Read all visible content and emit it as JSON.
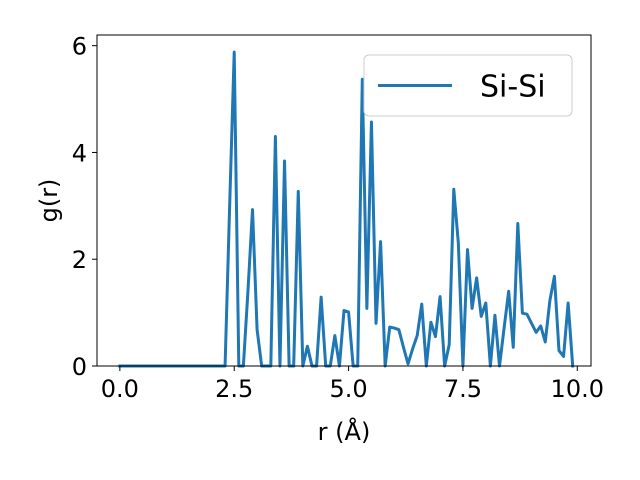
{
  "chart_data": {
    "type": "line",
    "xlabel": "r (Å)",
    "ylabel": "g(r)",
    "xlim": [
      -0.5,
      10.3
    ],
    "ylim": [
      0,
      6.2
    ],
    "xticks": [
      0.0,
      2.5,
      5.0,
      7.5,
      10.0
    ],
    "xtick_labels": [
      "0.0",
      "2.5",
      "5.0",
      "7.5",
      "10.0"
    ],
    "yticks": [
      0,
      2,
      4,
      6
    ],
    "ytick_labels": [
      "0",
      "2",
      "4",
      "6"
    ],
    "grid": false,
    "legend_position": "top-right",
    "series": [
      {
        "name": "Si-Si",
        "color": "#1f77b4",
        "x": [
          0.0,
          0.1,
          0.2,
          0.3,
          0.4,
          0.5,
          0.6,
          0.7,
          0.8,
          0.9,
          1.0,
          1.1,
          1.2,
          1.3,
          1.4,
          1.5,
          1.6,
          1.7,
          1.8,
          1.9,
          2.0,
          2.1,
          2.2,
          2.3,
          2.4,
          2.5,
          2.6,
          2.7,
          2.8,
          2.9,
          3.0,
          3.1,
          3.2,
          3.3,
          3.4,
          3.5,
          3.6,
          3.7,
          3.8,
          3.9,
          4.0,
          4.1,
          4.2,
          4.3,
          4.4,
          4.5,
          4.6,
          4.7,
          4.8,
          4.9,
          5.0,
          5.1,
          5.2,
          5.3,
          5.4,
          5.5,
          5.6,
          5.7,
          5.8,
          5.9,
          6.0,
          6.1,
          6.2,
          6.3,
          6.4,
          6.5,
          6.6,
          6.7,
          6.8,
          6.9,
          7.0,
          7.1,
          7.2,
          7.3,
          7.4,
          7.5,
          7.6,
          7.7,
          7.8,
          7.9,
          8.0,
          8.1,
          8.2,
          8.3,
          8.4,
          8.5,
          8.6,
          8.7,
          8.8,
          8.9,
          9.0,
          9.1,
          9.2,
          9.3,
          9.4,
          9.5,
          9.6,
          9.7,
          9.8,
          9.9
        ],
        "y": [
          0,
          0,
          0,
          0,
          0,
          0,
          0,
          0,
          0,
          0,
          0,
          0,
          0,
          0,
          0,
          0,
          0,
          0,
          0,
          0,
          0,
          0,
          0,
          0,
          3.0,
          5.88,
          0,
          0,
          1.4,
          2.93,
          0.68,
          0,
          0,
          0,
          4.3,
          0,
          3.84,
          0,
          0,
          3.27,
          0,
          0.37,
          0,
          0,
          1.29,
          0,
          0,
          0.57,
          0,
          1.04,
          1.01,
          0,
          0,
          5.37,
          1.08,
          4.57,
          0.8,
          2.33,
          0,
          0.73,
          0.71,
          0.68,
          0.35,
          0.04,
          0.32,
          0.57,
          1.16,
          0,
          0.82,
          0.55,
          1.3,
          0,
          0.4,
          3.31,
          2.3,
          0,
          2.18,
          1.08,
          1.65,
          0.93,
          1.18,
          0,
          0.95,
          0,
          0.71,
          1.4,
          0.35,
          2.67,
          0.99,
          0.97,
          0.8,
          0.63,
          0.75,
          0.45,
          1.22,
          1.68,
          0.29,
          0.18,
          1.18,
          0
        ]
      }
    ]
  }
}
